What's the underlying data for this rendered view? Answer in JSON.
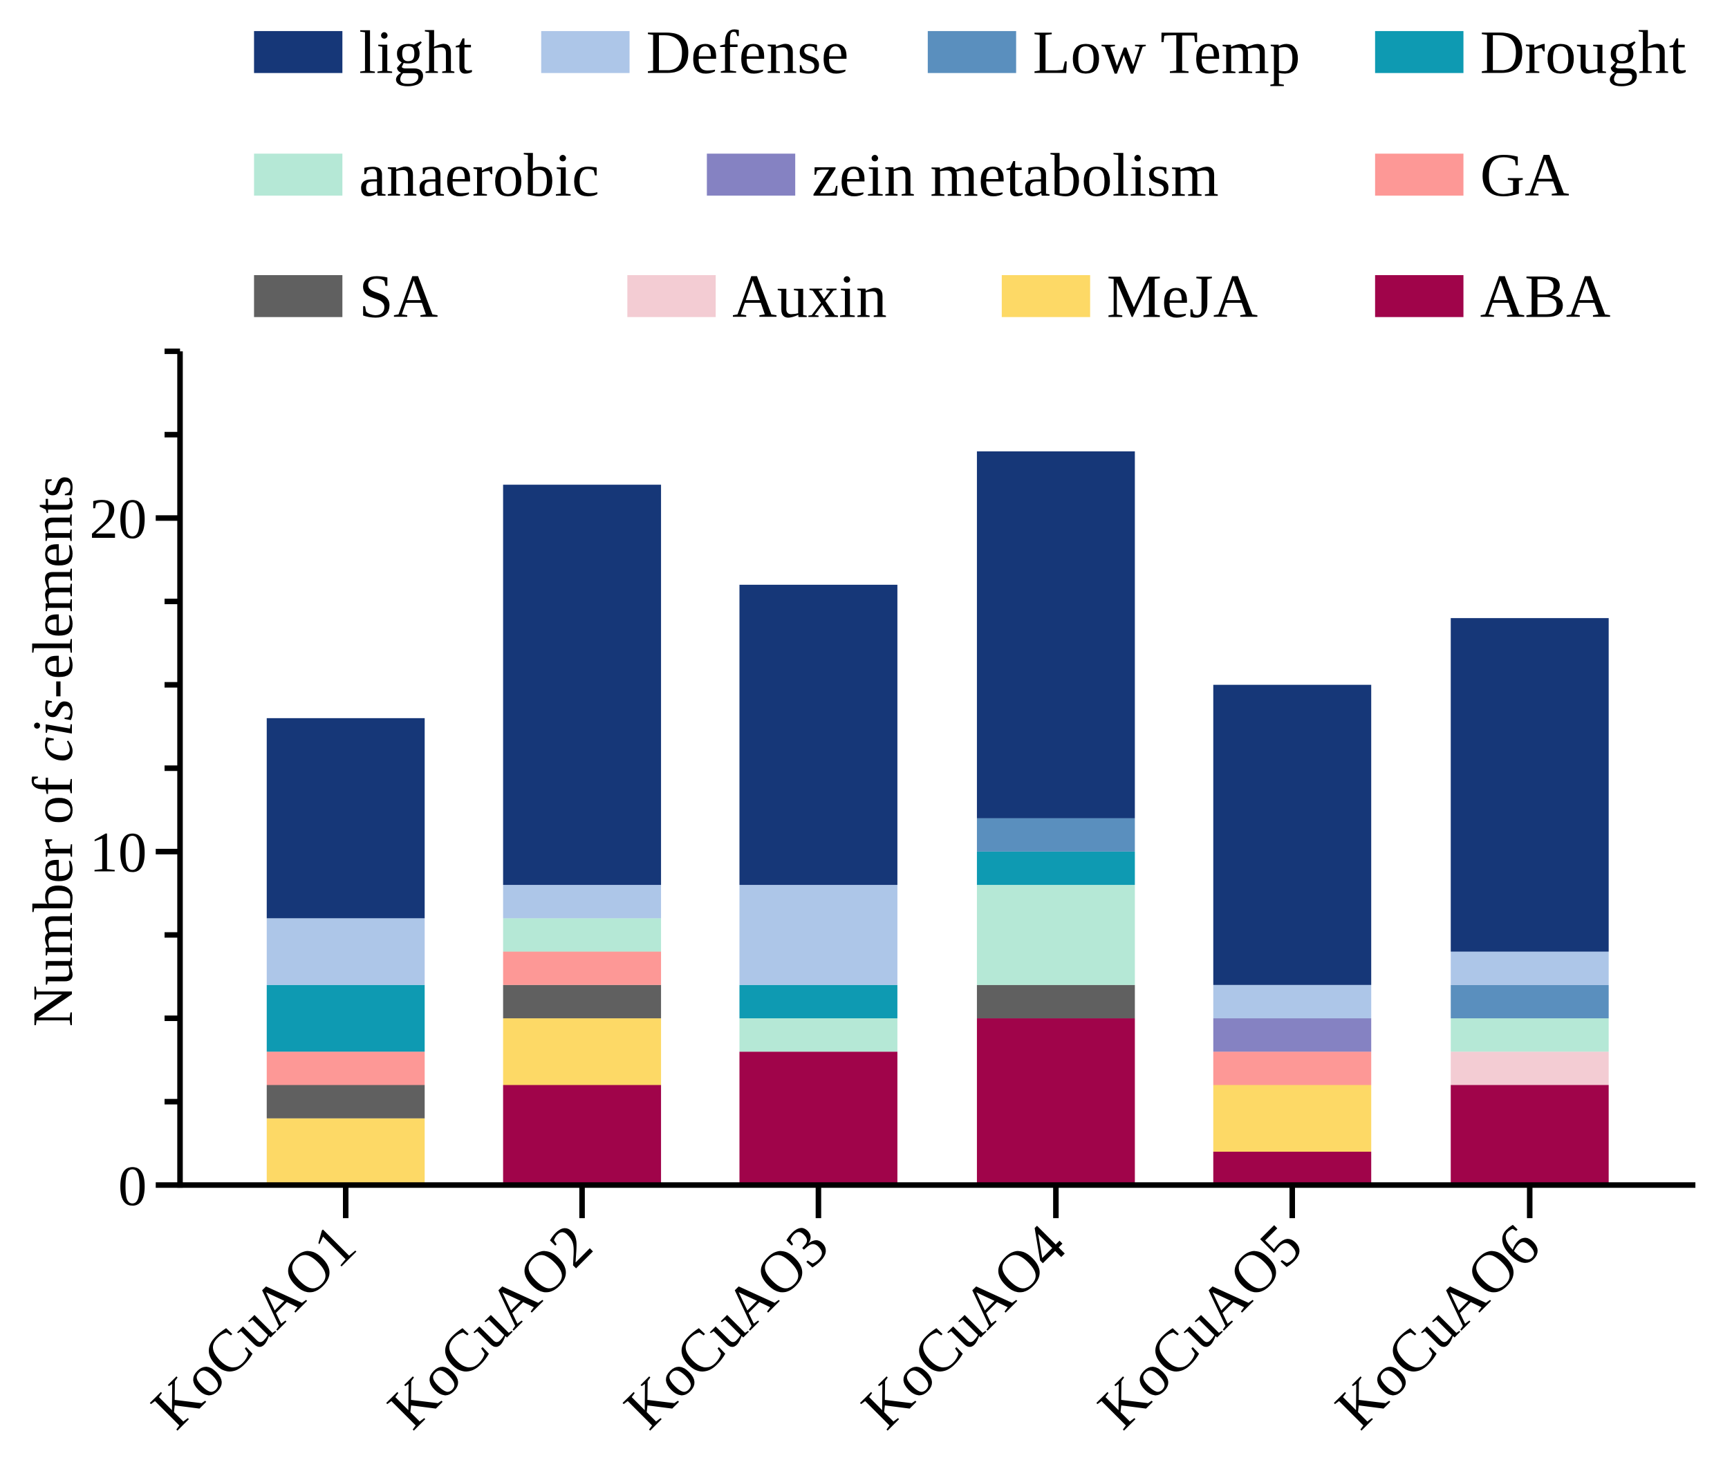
{
  "chart_data": {
    "type": "bar",
    "stacked": true,
    "title": "",
    "xlabel": "",
    "ylabel_prefix": "Number of ",
    "ylabel_italic": "cis",
    "ylabel_suffix": "-elements",
    "ylim": [
      0,
      25
    ],
    "yticks": [
      0,
      10,
      20
    ],
    "yminor_step": 2.5,
    "grid": false,
    "legend_position": "top",
    "categories": [
      "KoCuAO1",
      "KoCuAO2",
      "KoCuAO3",
      "KoCuAO4",
      "KoCuAO5",
      "KoCuAO6"
    ],
    "series": [
      {
        "name": "ABA",
        "color": "#a0044a",
        "values": [
          0,
          3,
          4,
          5,
          1,
          3
        ]
      },
      {
        "name": "MeJA",
        "color": "#fdd966",
        "values": [
          2,
          2,
          0,
          0,
          2,
          0
        ]
      },
      {
        "name": "Auxin",
        "color": "#f3ccd3",
        "values": [
          0,
          0,
          0,
          0,
          0,
          1
        ]
      },
      {
        "name": "SA",
        "color": "#606060",
        "values": [
          1,
          1,
          0,
          1,
          0,
          0
        ]
      },
      {
        "name": "GA",
        "color": "#fd9896",
        "values": [
          1,
          1,
          0,
          0,
          1,
          0
        ]
      },
      {
        "name": "zein metabolism",
        "color": "#8582c2",
        "values": [
          0,
          0,
          0,
          0,
          1,
          0
        ]
      },
      {
        "name": "anaerobic",
        "color": "#b5e8d6",
        "values": [
          0,
          1,
          1,
          3,
          0,
          1
        ]
      },
      {
        "name": "Drought",
        "color": "#0e9ab2",
        "values": [
          2,
          0,
          1,
          1,
          0,
          0
        ]
      },
      {
        "name": "Low Temp",
        "color": "#5a8fbe",
        "values": [
          0,
          0,
          0,
          1,
          0,
          1
        ]
      },
      {
        "name": "Defense",
        "color": "#adc6e8",
        "values": [
          2,
          1,
          3,
          0,
          1,
          1
        ]
      },
      {
        "name": "light",
        "color": "#163778",
        "values": [
          6,
          12,
          9,
          11,
          9,
          10
        ]
      }
    ],
    "legend_order": [
      "light",
      "Defense",
      "Low Temp",
      "Drought",
      "anaerobic",
      "zein metabolism",
      "GA",
      "SA",
      "Auxin",
      "MeJA",
      "ABA"
    ]
  }
}
